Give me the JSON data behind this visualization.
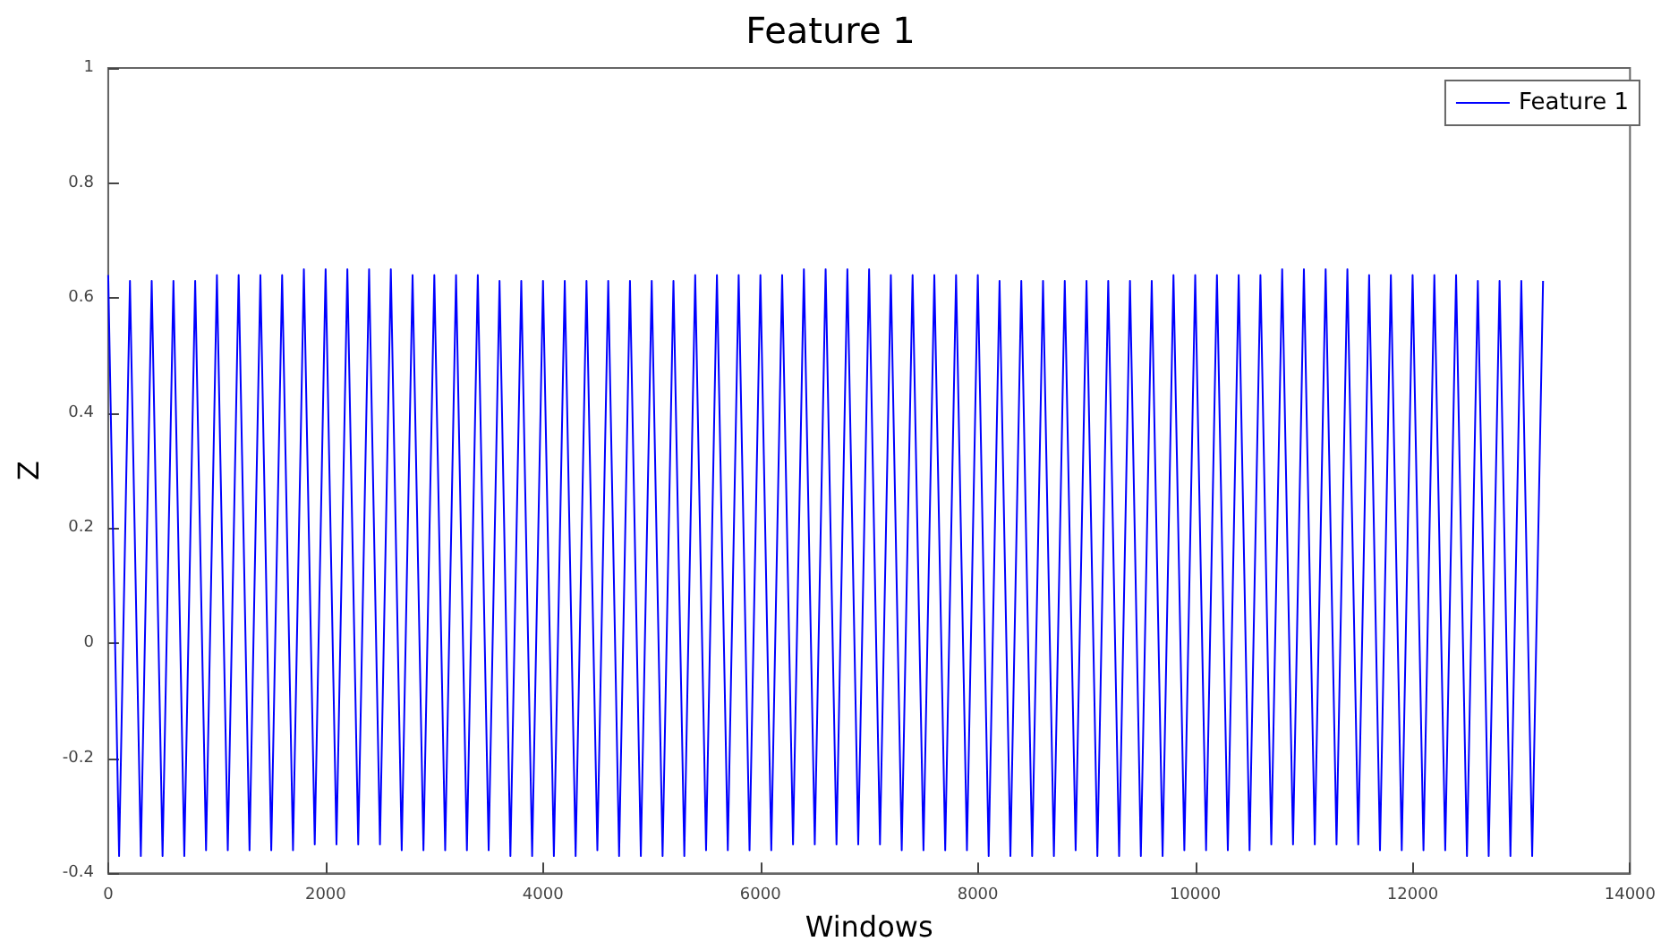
{
  "chart_data": {
    "type": "line",
    "title": "Feature 1",
    "xlabel": "Windows",
    "ylabel": "Z",
    "x": [
      0,
      100,
      200,
      300,
      400,
      500,
      600,
      700,
      800,
      900,
      1000,
      1100,
      1200,
      1300,
      1400,
      1500,
      1600,
      1700,
      1800,
      1900,
      2000,
      2100,
      2200,
      2300,
      2400,
      2500,
      2600,
      2700,
      2800,
      2900,
      3000,
      3100,
      3200,
      3300,
      3400,
      3500,
      3600,
      3700,
      3800,
      3900,
      4000,
      4100,
      4200,
      4300,
      4400,
      4500,
      4600,
      4700,
      4800,
      4900,
      5000,
      5100,
      5200,
      5300,
      5400,
      5500,
      5600,
      5700,
      5800,
      5900,
      6000,
      6100,
      6200,
      6300,
      6400,
      6500,
      6600,
      6700,
      6800,
      6900,
      7000,
      7100,
      7200,
      7300,
      7400,
      7500,
      7600,
      7700,
      7800,
      7900,
      8000,
      8100,
      8200,
      8300,
      8400,
      8500,
      8600,
      8700,
      8800,
      8900,
      9000,
      9100,
      9200,
      9300,
      9400,
      9500,
      9600,
      9700,
      9800,
      9900,
      10000,
      10100,
      10200,
      10300,
      10400,
      10500,
      10600,
      10700,
      10800,
      10900,
      11000,
      11100,
      11200,
      11300,
      11400,
      11500,
      11600,
      11700,
      11800,
      11900,
      12000,
      12100,
      12200,
      12300,
      12400,
      12500,
      12600,
      12700,
      12800,
      12900,
      13000,
      13100,
      13200
    ],
    "series": [
      {
        "name": "Feature 1",
        "color": "#0000ff",
        "values": [
          0.64,
          -0.37,
          0.63,
          -0.37,
          0.63,
          -0.37,
          0.63,
          -0.37,
          0.63,
          -0.36,
          0.64,
          -0.36,
          0.64,
          -0.36,
          0.64,
          -0.36,
          0.64,
          -0.36,
          0.65,
          -0.35,
          0.65,
          -0.35,
          0.65,
          -0.35,
          0.65,
          -0.35,
          0.65,
          -0.36,
          0.64,
          -0.36,
          0.64,
          -0.36,
          0.64,
          -0.36,
          0.64,
          -0.36,
          0.63,
          -0.37,
          0.63,
          -0.37,
          0.63,
          -0.37,
          0.63,
          -0.37,
          0.63,
          -0.36,
          0.63,
          -0.37,
          0.63,
          -0.37,
          0.63,
          -0.37,
          0.63,
          -0.37,
          0.64,
          -0.36,
          0.64,
          -0.36,
          0.64,
          -0.36,
          0.64,
          -0.36,
          0.64,
          -0.35,
          0.65,
          -0.35,
          0.65,
          -0.35,
          0.65,
          -0.35,
          0.65,
          -0.35,
          0.64,
          -0.36,
          0.64,
          -0.36,
          0.64,
          -0.36,
          0.64,
          -0.36,
          0.64,
          -0.37,
          0.63,
          -0.37,
          0.63,
          -0.37,
          0.63,
          -0.37,
          0.63,
          -0.36,
          0.63,
          -0.37,
          0.63,
          -0.37,
          0.63,
          -0.37,
          0.63,
          -0.37,
          0.64,
          -0.36,
          0.64,
          -0.36,
          0.64,
          -0.36,
          0.64,
          -0.36,
          0.64,
          -0.35,
          0.65,
          -0.35,
          0.65,
          -0.35,
          0.65,
          -0.35,
          0.65,
          -0.35,
          0.64,
          -0.36,
          0.64,
          -0.36,
          0.64,
          -0.36,
          0.64,
          -0.36,
          0.64,
          -0.37,
          0.63,
          -0.37,
          0.63,
          -0.37,
          0.63,
          -0.37,
          0.63
        ]
      }
    ],
    "xlim": [
      0,
      14000
    ],
    "xticks": [
      0,
      2000,
      4000,
      6000,
      8000,
      10000,
      12000,
      14000
    ],
    "ylim": [
      -0.4,
      1
    ],
    "yticks": [
      -0.4,
      -0.2,
      0,
      0.2,
      0.4,
      0.6,
      0.8,
      1
    ],
    "legend": "top right",
    "grid": false,
    "marker": "none",
    "line_style": "solid"
  }
}
